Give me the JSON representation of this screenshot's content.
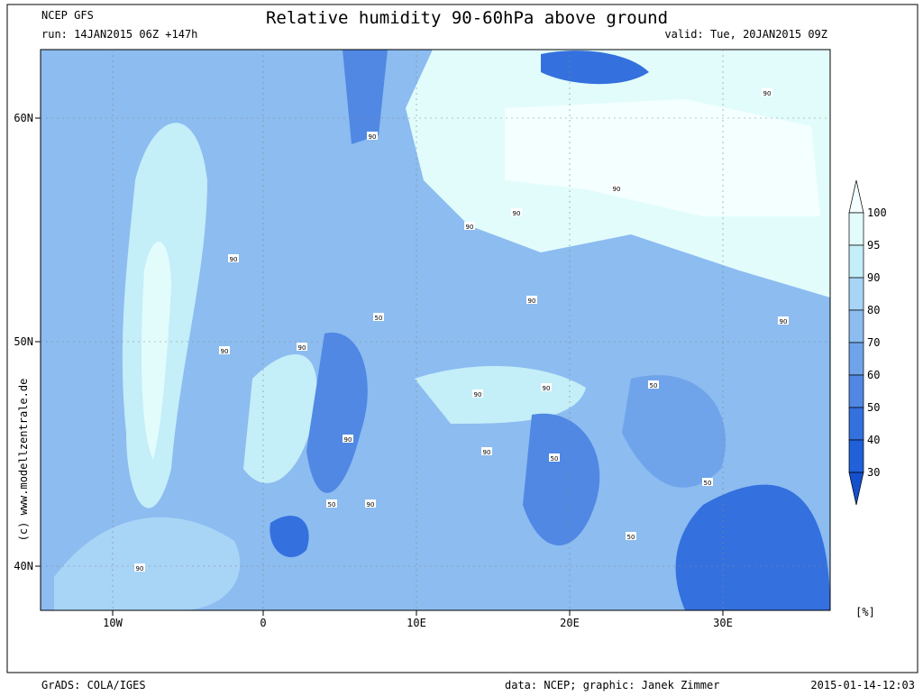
{
  "header": {
    "model": "NCEP GFS",
    "run": "run: 14JAN2015 06Z +147h",
    "title": "Relative humidity 90-60hPa above ground",
    "valid": "valid: Tue, 20JAN2015 09Z"
  },
  "map": {
    "lon_labels": [
      "10W",
      "0",
      "10E",
      "20E",
      "30E"
    ],
    "lat_labels": [
      "60N",
      "50N",
      "40N"
    ],
    "contour_labels": [
      "90",
      "90",
      "90",
      "90",
      "90",
      "50",
      "90",
      "90",
      "90",
      "90",
      "90",
      "90",
      "50",
      "90",
      "90",
      "50",
      "50",
      "90",
      "50",
      "90",
      "50",
      "90"
    ],
    "copyright": "(c) www.modellzentrale.de"
  },
  "colorbar": {
    "labels": [
      "100",
      "95",
      "90",
      "80",
      "70",
      "60",
      "50",
      "40",
      "30"
    ],
    "unit": "[%]",
    "colors": [
      "#f4ffff",
      "#e2fcfc",
      "#c4eef8",
      "#a8d4f6",
      "#8cbcf0",
      "#70a4ea",
      "#5088e4",
      "#3470de",
      "#2060d8",
      "#1450cc"
    ]
  },
  "footer": {
    "left": "GrADS: COLA/IGES",
    "credit": "data: NCEP; graphic: Janek Zimmer",
    "timestamp": "2015-01-14-12:03"
  }
}
